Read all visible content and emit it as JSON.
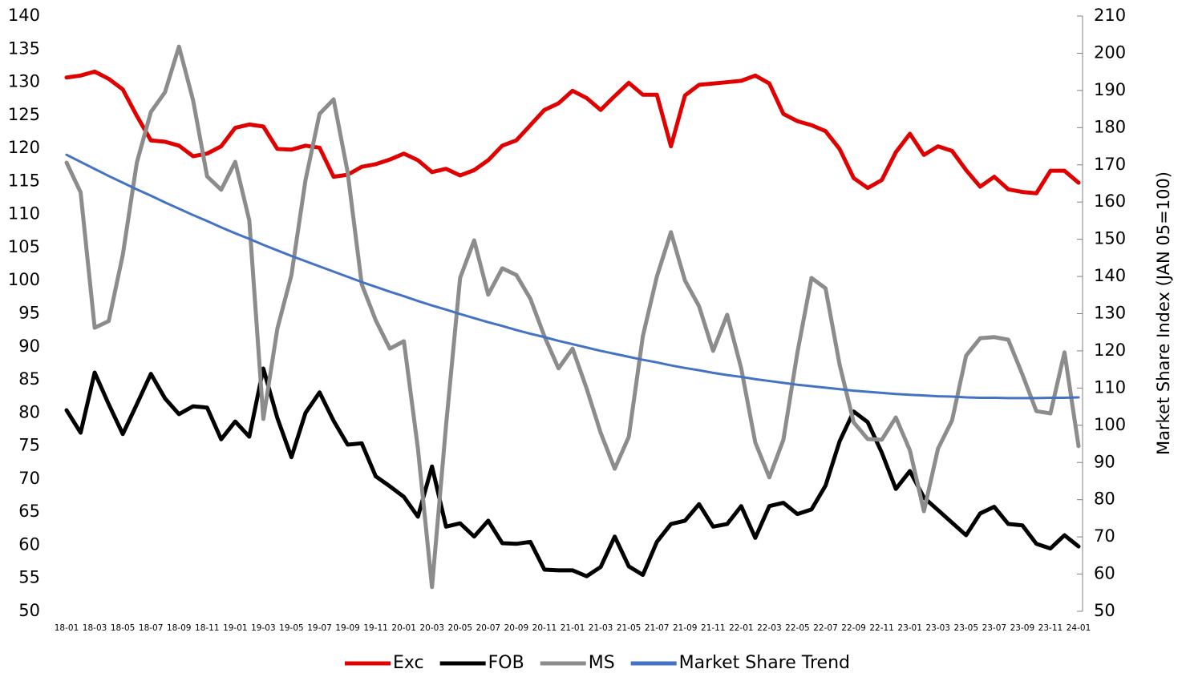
{
  "chart_data": {
    "type": "line",
    "y2label": "Market Share Index (JAN 05=100)",
    "categories": [
      "18-01",
      null,
      "18-03",
      null,
      "18-05",
      null,
      "18-07",
      null,
      "18-09",
      null,
      "18-11",
      null,
      "19-01",
      null,
      "19-03",
      null,
      "19-05",
      null,
      "19-07",
      null,
      "19-09",
      null,
      "19-11",
      null,
      "20-01",
      null,
      "20-03",
      null,
      "20-05",
      null,
      "20-07",
      null,
      "20-09",
      null,
      "20-11",
      null,
      "21-01",
      null,
      "21-03",
      null,
      "21-05",
      null,
      "21-07",
      null,
      "21-09",
      null,
      "21-11",
      null,
      "22-01",
      null,
      "22-03",
      null,
      "22-05",
      null,
      "22-07",
      null,
      "22-09",
      null,
      "22-11",
      null,
      "23-01",
      null,
      "23-03",
      null,
      "23-05",
      null,
      "23-07",
      null,
      "23-09",
      null,
      "23-11",
      null,
      "24-01"
    ],
    "series": [
      {
        "name": "Exc",
        "color": "#e00000",
        "axis": "y",
        "width": 5,
        "values": [
          130.7,
          131,
          131.6,
          130.5,
          128.9,
          124.9,
          121.2,
          121,
          120.4,
          118.8,
          119.2,
          120.3,
          123.1,
          123.6,
          123.3,
          119.9,
          119.8,
          120.4,
          120.1,
          115.7,
          116,
          117.2,
          117.6,
          118.3,
          119.2,
          118.2,
          116.4,
          116.9,
          115.9,
          116.7,
          118.2,
          120.4,
          121.2,
          123.5,
          125.8,
          126.8,
          128.7,
          127.6,
          125.8,
          127.9,
          129.9,
          128.1,
          128.1,
          120.3,
          128,
          129.6,
          129.8,
          130,
          130.2,
          131,
          129.8,
          125.2,
          124.1,
          123.5,
          122.6,
          119.9,
          115.5,
          114,
          115.2,
          119.4,
          122.2,
          119,
          120.3,
          119.6,
          116.7,
          114.2,
          115.7,
          113.8,
          113.4,
          113.2,
          116.6,
          116.6,
          114.8
        ]
      },
      {
        "name": "FOB",
        "color": "#000000",
        "axis": "y",
        "width": 5,
        "values": [
          80.4,
          77,
          86.1,
          81.3,
          76.8,
          81.3,
          85.9,
          82.2,
          79.8,
          81,
          80.8,
          76,
          78.7,
          76.4,
          86.7,
          79.2,
          73.3,
          80,
          83.1,
          78.8,
          75.2,
          75.4,
          70.4,
          68.9,
          67.3,
          64.3,
          71.9,
          62.8,
          63.3,
          61.3,
          63.7,
          60.3,
          60.2,
          60.5,
          56.3,
          56.2,
          56.2,
          55.3,
          56.7,
          61.3,
          56.8,
          55.5,
          60.5,
          63.2,
          63.7,
          66.2,
          62.8,
          63.2,
          65.9,
          61.1,
          65.9,
          66.4,
          64.7,
          65.4,
          69,
          75.7,
          80.2,
          78.6,
          74,
          68.5,
          71.2,
          67.2,
          65.3,
          63.4,
          61.5,
          64.8,
          65.8,
          63.2,
          63,
          60.2,
          59.5,
          61.5,
          59.8
        ]
      },
      {
        "name": "MS",
        "color": "#8c8c8c",
        "axis": "y2",
        "width": 5,
        "values": [
          170.6,
          162.6,
          126.2,
          128,
          145.8,
          170.6,
          184.2,
          189.5,
          201.8,
          187.4,
          166.9,
          163.3,
          170.8,
          155.1,
          101.7,
          126,
          140.4,
          165.9,
          183.7,
          187.6,
          168,
          137.9,
          128.2,
          120.6,
          122.6,
          93.7,
          56.5,
          100,
          139.6,
          149.7,
          135.1,
          142.2,
          140.4,
          134,
          123.9,
          115.3,
          120.6,
          109.9,
          98,
          88.3,
          96.9,
          123.9,
          140,
          151.9,
          138.9,
          132,
          120,
          129.7,
          115.3,
          95.4,
          86,
          96.1,
          119.6,
          139.6,
          136.8,
          116.3,
          100.8,
          96.3,
          96.1,
          102.1,
          93.3,
          76.9,
          93.7,
          101.3,
          118.7,
          123.4,
          123.7,
          123,
          113.7,
          103.8,
          103.2,
          119.6,
          94.4
        ]
      },
      {
        "name": "Market Share Trend",
        "color": "#4472c4",
        "axis": "y2",
        "width": 3,
        "values": [
          172.7,
          170.8,
          168.9,
          167.0,
          165.2,
          163.4,
          161.7,
          159.9,
          158.2,
          156.5,
          154.9,
          153.2,
          151.6,
          150.1,
          148.5,
          147.0,
          145.5,
          144.1,
          142.7,
          141.3,
          139.9,
          138.5,
          137.2,
          135.9,
          134.7,
          133.4,
          132.2,
          131.1,
          129.9,
          128.8,
          127.7,
          126.7,
          125.6,
          124.6,
          123.7,
          122.7,
          121.8,
          120.9,
          120.0,
          119.2,
          118.4,
          117.6,
          116.9,
          116.1,
          115.4,
          114.8,
          114.1,
          113.5,
          113.0,
          112.4,
          111.9,
          111.4,
          110.9,
          110.5,
          110.1,
          109.7,
          109.3,
          109.0,
          108.7,
          108.4,
          108.2,
          108.0,
          107.8,
          107.7,
          107.5,
          107.4,
          107.4,
          107.3,
          107.3,
          107.3,
          107.4,
          107.4,
          107.5
        ]
      }
    ],
    "ylim": [
      50,
      140
    ],
    "yticks": [
      50,
      55,
      60,
      65,
      70,
      75,
      80,
      85,
      90,
      95,
      100,
      105,
      110,
      115,
      120,
      125,
      130,
      135,
      140
    ],
    "y2lim": [
      50,
      210
    ],
    "y2ticks": [
      50,
      60,
      70,
      80,
      90,
      100,
      110,
      120,
      130,
      140,
      150,
      160,
      170,
      180,
      190,
      200,
      210
    ],
    "legend": "bottom"
  }
}
